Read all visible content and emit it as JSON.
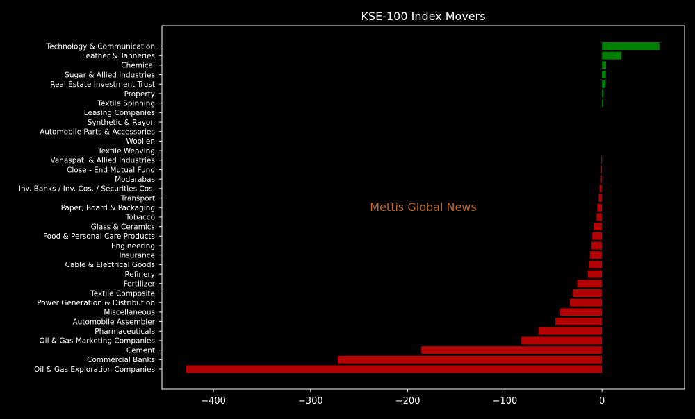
{
  "chart_data": {
    "type": "bar",
    "orientation": "horizontal",
    "title": "KSE-100 Index Movers",
    "xlabel": "",
    "ylabel": "",
    "xlim": [
      -453,
      85
    ],
    "xticks": [
      -400,
      -300,
      -200,
      -100,
      0
    ],
    "xtick_labels": [
      "−400",
      "−300",
      "−200",
      "−100",
      "0"
    ],
    "grid": false,
    "watermark": "Mettis Global News",
    "colors": {
      "background": "#000000",
      "axes": "#ffffff",
      "text": "#ffffff",
      "positive": "#008000",
      "negative": "#b30000",
      "watermark": "#b8682a"
    },
    "categories": [
      "Technology & Communication",
      "Leather & Tanneries",
      "Chemical",
      "Sugar & Allied Industries",
      "Real Estate Investment Trust",
      "Property",
      "Textile Spinning",
      "Leasing Companies",
      "Synthetic & Rayon",
      "Automobile Parts & Accessories",
      "Woollen",
      "Textile Weaving",
      "Vanaspati & Allied Industries",
      "Close - End Mutual Fund",
      "Modarabas",
      "Inv. Banks / Inv. Cos. / Securities Cos.",
      "Transport",
      "Paper, Board & Packaging",
      "Tobacco",
      "Glass & Ceramics",
      "Food & Personal Care Products",
      "Engineering",
      "Insurance",
      "Cable & Electrical Goods",
      "Refinery",
      "Fertilizer",
      "Textile Composite",
      "Power Generation & Distribution",
      "Miscellaneous",
      "Automobile Assembler",
      "Pharmaceuticals",
      "Oil & Gas Marketing Companies",
      "Cement",
      "Commercial Banks",
      "Oil & Gas Exploration Companies"
    ],
    "values": [
      59,
      20,
      4.2,
      4.0,
      3.6,
      1.5,
      1.2,
      0,
      0,
      0,
      0,
      0,
      -0.8,
      -1.0,
      -1.2,
      -2.5,
      -3.5,
      -5,
      -5.5,
      -8.5,
      -10,
      -11,
      -12.5,
      -13.5,
      -14.5,
      -25.5,
      -30,
      -33,
      -43,
      -48,
      -65.5,
      -83,
      -186,
      -272,
      -428
    ]
  }
}
